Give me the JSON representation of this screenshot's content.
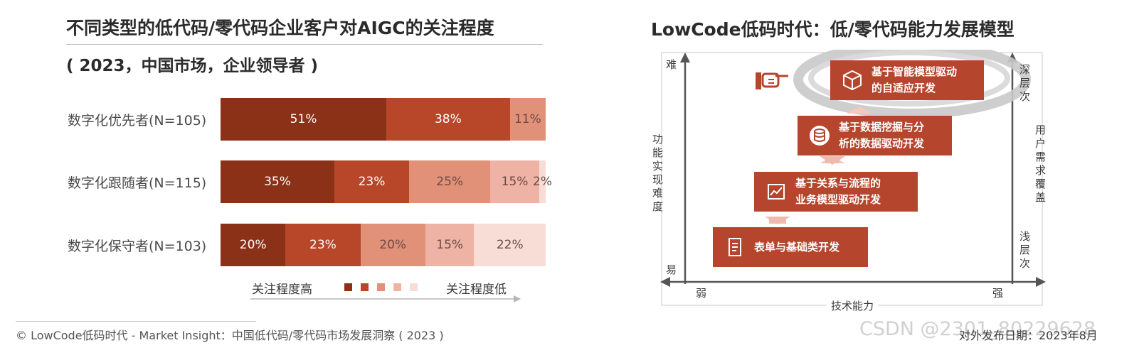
{
  "left": {
    "title": "不同类型的低代码/零代码企业客户对AIGC的关注程度",
    "subtitle": "( 2023，中国市场，企业领导者 )",
    "legend": {
      "high": "关注程度高",
      "low": "关注程度低"
    }
  },
  "colors": [
    "#8b3118",
    "#b8472a",
    "#e19178",
    "#eeb3a4",
    "#f8ddd6"
  ],
  "chart_data": {
    "type": "bar",
    "stacked": true,
    "orientation": "horizontal",
    "title": "不同类型的低代码/零代码企业客户对AIGC的关注程度",
    "subtitle": "( 2023，中国市场，企业领导者 )",
    "categories": [
      "数字化优先者(N=105)",
      "数字化跟随者(N=115)",
      "数字化保守者(N=103)"
    ],
    "values": [
      [
        51,
        38,
        11,
        0,
        0
      ],
      [
        35,
        23,
        25,
        15,
        2
      ],
      [
        20,
        23,
        20,
        15,
        22
      ]
    ],
    "labels": [
      [
        "51%",
        "38%",
        "11%",
        "",
        ""
      ],
      [
        "35%",
        "23%",
        "25%",
        "15%",
        "2%"
      ],
      [
        "20%",
        "23%",
        "20%",
        "15%",
        "22%"
      ]
    ],
    "legend": [
      "关注程度高",
      "关注程度低"
    ],
    "xlim": [
      0,
      100
    ]
  },
  "right": {
    "title": "LowCode低码时代：低/零代码能力发展模型",
    "axis": {
      "y_top": "难",
      "y_bottom": "易",
      "y_label": "功能实现难度",
      "x_left": "弱",
      "x_right": "强",
      "x_label": "技术能力",
      "r_top": "深层次",
      "r_mid": "用户需求覆盖",
      "r_bottom": "浅层次"
    },
    "stages": [
      {
        "text": "表单与基础类开发",
        "icon": "document-icon"
      },
      {
        "text": "基于关系与流程的\n业务模型驱动开发",
        "icon": "chart-icon"
      },
      {
        "text": "基于数据挖掘与分\n析的数据驱动开发",
        "icon": "database-icon"
      },
      {
        "text": "基于智能模型驱动\n的自适应开发",
        "icon": "cube-icon"
      }
    ]
  },
  "footer": {
    "source": "© LowCode低码时代 - Market Insight：中国低代码/零代码市场发展洞察 ( 2023 )",
    "date": "对外发布日期：2023年8月",
    "watermark": "CSDN @2301_80229628"
  }
}
